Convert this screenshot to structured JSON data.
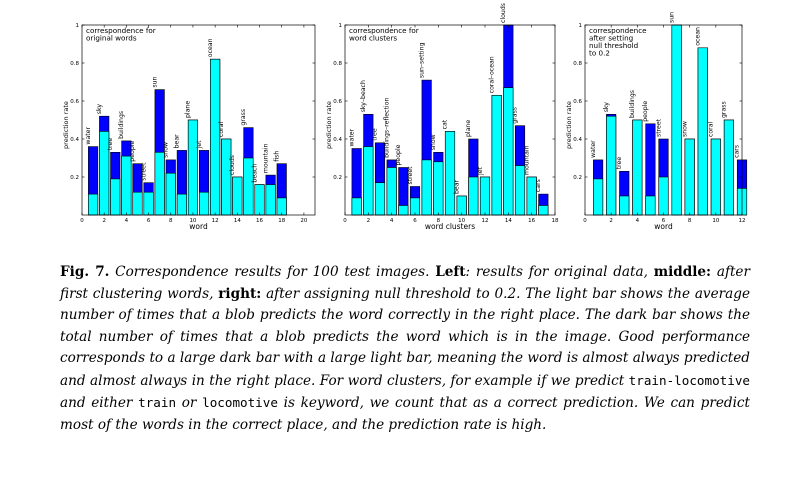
{
  "colors": {
    "light": "#00ffff",
    "dark": "#0000ff",
    "edge": "#000000"
  },
  "chart_data": [
    {
      "type": "bar",
      "title": "correspondence for\noriginal words",
      "xlabel": "word",
      "ylabel": "prediction rate",
      "xlim": [
        0,
        21
      ],
      "ylim": [
        0,
        1
      ],
      "xticks": [
        0,
        2,
        4,
        6,
        8,
        10,
        12,
        14,
        16,
        18,
        20
      ],
      "yticks": [
        0.2,
        0.4,
        0.6,
        0.8,
        1
      ],
      "categories": [
        "water",
        "sky",
        "tree",
        "buildings",
        "people",
        "street",
        "sun",
        "snow",
        "bear",
        "plane",
        "jet",
        "ocean",
        "coral",
        "clouds",
        "grass",
        "beach",
        "mountain",
        "fish"
      ],
      "series": [
        {
          "values": [
            0.36,
            0.52,
            0.33,
            0.39,
            0.27,
            0.17,
            0.66,
            0.29,
            0.34,
            0.5,
            0.34,
            0.82,
            0.4,
            0.2,
            0.46,
            0.16,
            0.21,
            0.27
          ]
        },
        {
          "values": [
            0.11,
            0.44,
            0.19,
            0.31,
            0.12,
            0.12,
            0.33,
            0.22,
            0.11,
            0.5,
            0.12,
            0.82,
            0.4,
            0.2,
            0.3,
            0.16,
            0.16,
            0.09
          ]
        }
      ]
    },
    {
      "type": "bar",
      "title": "correspondence for\nword clusters",
      "xlabel": "word clusters",
      "ylabel": "prediction rate",
      "xlim": [
        0,
        18
      ],
      "ylim": [
        0,
        1
      ],
      "xticks": [
        0,
        2,
        4,
        6,
        8,
        10,
        12,
        14,
        16,
        18
      ],
      "yticks": [
        0.2,
        0.4,
        0.6,
        0.8,
        1
      ],
      "categories": [
        "water",
        "sky–beach",
        "tree",
        "buildings–reflection",
        "people",
        "street",
        "sun–setting",
        "snow",
        "cat",
        "bear",
        "plane",
        "jet",
        "coral–ocean",
        "clouds",
        "grass",
        "mountain",
        "cars"
      ],
      "series": [
        {
          "values": [
            0.35,
            0.53,
            0.38,
            0.29,
            0.25,
            0.15,
            0.71,
            0.33,
            0.44,
            0.1,
            0.4,
            0.2,
            0.63,
            1.0,
            0.47,
            0.2,
            0.11
          ]
        },
        {
          "values": [
            0.09,
            0.36,
            0.17,
            0.25,
            0.05,
            0.09,
            0.29,
            0.28,
            0.44,
            0.1,
            0.2,
            0.2,
            0.63,
            0.67,
            0.26,
            0.2,
            0.05
          ]
        }
      ]
    },
    {
      "type": "bar",
      "title": "correspondence\nafter setting\nnull threshold\nto 0.2",
      "xlabel": "word",
      "ylabel": "prediction rate",
      "xlim": [
        0,
        12
      ],
      "ylim": [
        0,
        1
      ],
      "xticks": [
        0,
        2,
        4,
        6,
        8,
        10,
        12
      ],
      "yticks": [
        0.2,
        0.4,
        0.6,
        0.8,
        1
      ],
      "categories": [
        "water",
        "sky",
        "tree",
        "buildings",
        "people",
        "street",
        "sun",
        "snow",
        "ocean",
        "coral",
        "grass",
        "cars"
      ],
      "series": [
        {
          "values": [
            0.29,
            0.53,
            0.23,
            0.5,
            0.48,
            0.4,
            1.0,
            0.4,
            0.88,
            0.4,
            0.5,
            0.29
          ]
        },
        {
          "values": [
            0.19,
            0.52,
            0.1,
            0.5,
            0.1,
            0.2,
            1.0,
            0.4,
            0.88,
            0.4,
            0.5,
            0.14
          ]
        }
      ]
    }
  ],
  "caption": {
    "fig_label": "Fig. 7.",
    "text1": " Correspondence results for 100 test images. ",
    "left_label": "Left",
    "text2": ": results for original data, ",
    "middle_label": "middle:",
    "text3": " after first clustering words, ",
    "right_label": "right:",
    "text4": " after assigning null threshold to 0.2. The light bar shows the average number of times that a blob predicts the word correctly in the right place. The dark bar shows the total number of times that a blob predicts the word which is in the image. Good performance corresponds to a large dark bar with a large light bar, meaning the word is almost always predicted and almost always in the right place. For word clusters, for example if we predict ",
    "code1": "train-locomotive",
    "text5": " and either ",
    "code2": "train",
    "text6": " or ",
    "code3": "locomotive",
    "text7": " is keyword, we count that as a correct prediction. We can predict most of the words in the correct place, and the prediction rate is high."
  }
}
